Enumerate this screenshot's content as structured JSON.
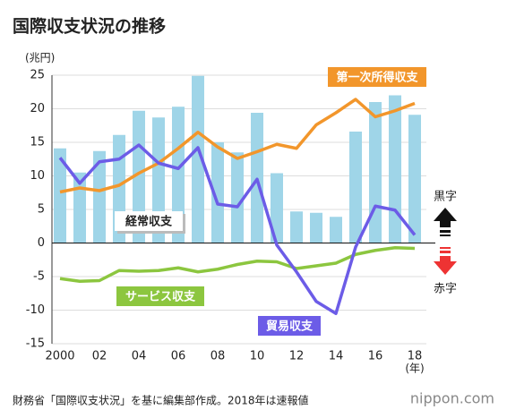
{
  "chart_data": {
    "type": "bar",
    "title": "国際収支状況の推移",
    "y_axis_label": "(兆円)",
    "x_axis_label": "(年)",
    "categories": [
      "2000",
      null,
      "02",
      null,
      "04",
      null,
      "06",
      null,
      "08",
      null,
      "10",
      null,
      "12",
      null,
      "14",
      null,
      "16",
      null,
      "18"
    ],
    "series": [
      {
        "name": "経常収支",
        "type": "bar",
        "color": "#9fd5e8",
        "values": [
          14.1,
          10.5,
          13.7,
          16.1,
          19.7,
          18.7,
          20.3,
          24.9,
          15.0,
          13.5,
          19.4,
          10.4,
          4.7,
          4.5,
          3.9,
          16.6,
          21.0,
          22.0,
          19.1
        ]
      },
      {
        "name": "第一次所得収支",
        "type": "line",
        "color": "#f2962b",
        "values": [
          7.6,
          8.2,
          7.8,
          8.6,
          10.4,
          11.9,
          14.1,
          16.5,
          14.3,
          12.6,
          13.6,
          14.7,
          14.1,
          17.6,
          19.4,
          21.4,
          18.8,
          19.7,
          20.8
        ]
      },
      {
        "name": "サービス収支",
        "type": "line",
        "color": "#8cc63f",
        "values": [
          -5.3,
          -5.7,
          -5.6,
          -4.1,
          -4.2,
          -4.1,
          -3.7,
          -4.3,
          -3.9,
          -3.2,
          -2.7,
          -2.8,
          -3.8,
          -3.4,
          -3.0,
          -1.7,
          -1.1,
          -0.7,
          -0.8
        ]
      },
      {
        "name": "貿易収支",
        "type": "line",
        "color": "#6c5ce7",
        "values": [
          12.7,
          8.9,
          12.1,
          12.5,
          14.6,
          11.9,
          11.1,
          14.2,
          5.8,
          5.4,
          9.5,
          -0.3,
          -4.3,
          -8.7,
          -10.5,
          -0.6,
          5.5,
          4.9,
          1.2
        ]
      }
    ],
    "ylim": [
      -15,
      25
    ],
    "yticks": [
      25,
      20,
      15,
      10,
      5,
      0,
      -5,
      -10,
      -15
    ],
    "grid": true,
    "surplus_label": "黒字",
    "deficit_label": "赤字"
  },
  "footer": {
    "source": "財務省「国際収支状況」を基に編集部作成。2018年は速報値",
    "logo": "nippon.com"
  }
}
